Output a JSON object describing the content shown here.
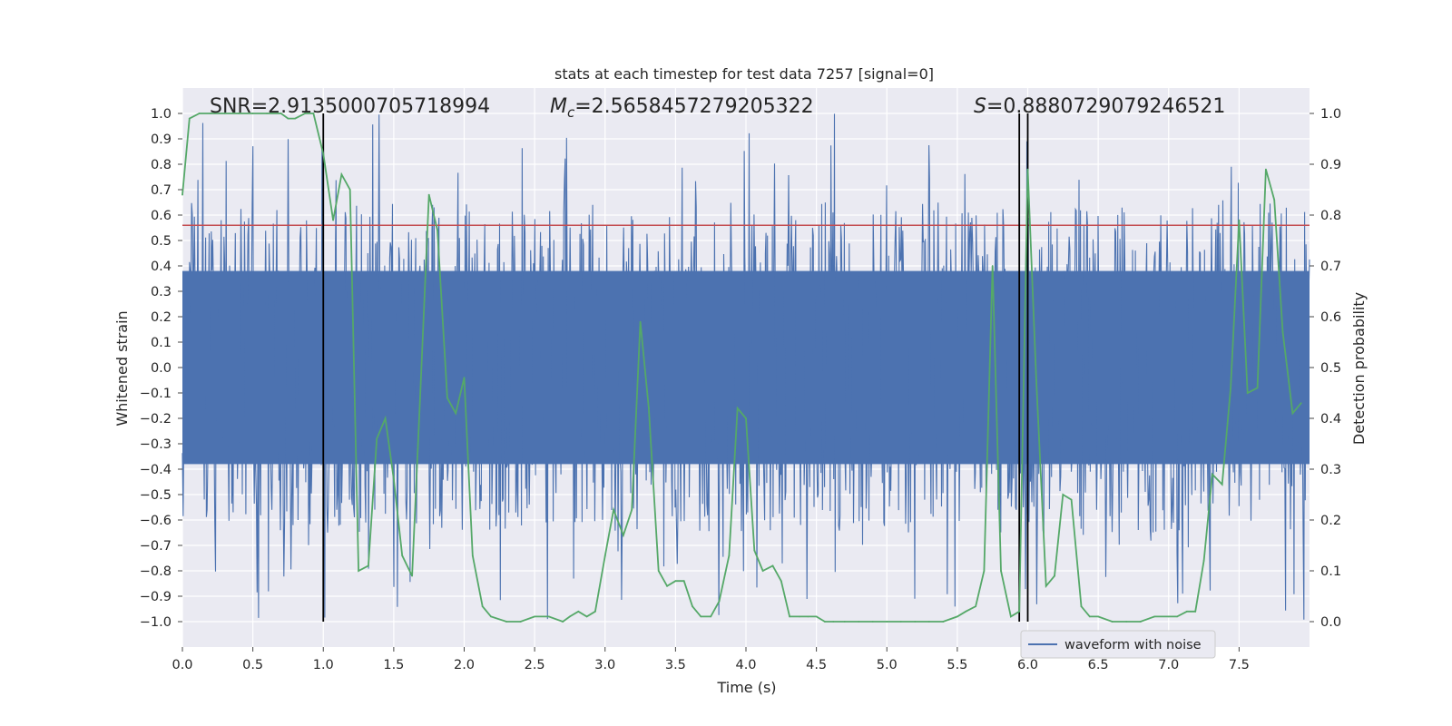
{
  "chart_data": {
    "type": "line",
    "title": "stats at each timestep for test data 7257 [signal=0]",
    "xlabel": "Time (s)",
    "ylabel_left": "Whitened strain",
    "ylabel_right": "Detection probability",
    "xlim": [
      0.0,
      8.0
    ],
    "ylim_left": [
      -1.1,
      1.1
    ],
    "ylim_right": [
      -0.05,
      1.05
    ],
    "x_ticks": [
      0.0,
      0.5,
      1.0,
      1.5,
      2.0,
      2.5,
      3.0,
      3.5,
      4.0,
      4.5,
      5.0,
      5.5,
      6.0,
      6.5,
      7.0,
      7.5
    ],
    "x_tick_labels": [
      "0.0",
      "0.5",
      "1.0",
      "1.5",
      "2.0",
      "2.5",
      "3.0",
      "3.5",
      "4.0",
      "4.5",
      "5.0",
      "5.5",
      "6.0",
      "6.5",
      "7.0",
      "7.5"
    ],
    "y_left_ticks": [
      1.0,
      0.9,
      0.8,
      0.7,
      0.6,
      0.5,
      0.4,
      0.3,
      0.2,
      0.1,
      0.0,
      -0.1,
      -0.2,
      -0.3,
      -0.4,
      -0.5,
      -0.6,
      -0.7,
      -0.8,
      -0.9,
      -1.0
    ],
    "y_left_tick_labels": [
      "1.0",
      "0.9",
      "0.8",
      "0.7",
      "0.6",
      "0.5",
      "0.4",
      "0.3",
      "0.2",
      "0.1",
      "0.0",
      "−0.1",
      "−0.2",
      "−0.3",
      "−0.4",
      "−0.5",
      "−0.6",
      "−0.7",
      "−0.8",
      "−0.9",
      "−1.0"
    ],
    "y_right_ticks": [
      1.0,
      0.9,
      0.8,
      0.7,
      0.6,
      0.5,
      0.4,
      0.3,
      0.2,
      0.1,
      0.0
    ],
    "y_right_tick_labels": [
      "1.0",
      "0.9",
      "0.8",
      "0.7",
      "0.6",
      "0.5",
      "0.4",
      "0.3",
      "0.2",
      "0.1",
      "0.0"
    ],
    "annotations": {
      "snr": "SNR=2.9135000705718994",
      "mc_symbol": "M",
      "mc_sub": "c",
      "mc_value": "=2.5658457279205322",
      "s_symbol": "S",
      "s_value": "=0.8880729079246521"
    },
    "threshold": 0.78,
    "vertical_markers": [
      1.0,
      5.94,
      6.0
    ],
    "legend": {
      "label": "waveform with noise",
      "location": "lower-right"
    },
    "colors": {
      "waveform": "#4c72b0",
      "probability": "#55a868",
      "threshold": "#c44e52",
      "markers": "#000000",
      "plot_bg": "#eaeaf2",
      "grid": "#ffffff"
    },
    "series": [
      {
        "name": "waveform with noise",
        "axis": "left",
        "envelope": {
          "core_amplitude": 0.38,
          "typical_peak": 0.55,
          "max_abs": 1.0,
          "samples": 1600,
          "seed": 7257
        }
      },
      {
        "name": "detection probability",
        "axis": "right",
        "x": [
          0.0,
          0.05,
          0.12,
          0.2,
          0.3,
          0.4,
          0.5,
          0.6,
          0.7,
          0.75,
          0.8,
          0.87,
          0.93,
          1.0,
          1.07,
          1.13,
          1.19,
          1.25,
          1.32,
          1.38,
          1.44,
          1.5,
          1.56,
          1.63,
          1.69,
          1.75,
          1.81,
          1.88,
          1.94,
          2.0,
          2.06,
          2.13,
          2.19,
          2.3,
          2.4,
          2.5,
          2.6,
          2.7,
          2.75,
          2.81,
          2.87,
          2.93,
          3.0,
          3.06,
          3.13,
          3.19,
          3.25,
          3.31,
          3.38,
          3.44,
          3.5,
          3.56,
          3.62,
          3.68,
          3.75,
          3.81,
          3.88,
          3.94,
          4.0,
          4.06,
          4.12,
          4.19,
          4.25,
          4.31,
          4.38,
          4.44,
          4.5,
          4.56,
          4.62,
          4.7,
          4.8,
          4.9,
          5.0,
          5.1,
          5.2,
          5.3,
          5.4,
          5.5,
          5.56,
          5.63,
          5.69,
          5.75,
          5.81,
          5.88,
          5.94,
          6.0,
          6.06,
          6.13,
          6.19,
          6.25,
          6.31,
          6.38,
          6.44,
          6.5,
          6.6,
          6.7,
          6.8,
          6.9,
          7.0,
          7.06,
          7.13,
          7.19,
          7.25,
          7.31,
          7.38,
          7.44,
          7.5,
          7.56,
          7.63,
          7.69,
          7.75,
          7.81,
          7.88,
          7.94
        ],
        "values": [
          0.84,
          0.99,
          1.0,
          1.0,
          1.0,
          1.0,
          1.0,
          1.0,
          1.0,
          0.99,
          0.99,
          1.0,
          1.0,
          0.92,
          0.79,
          0.88,
          0.85,
          0.1,
          0.11,
          0.36,
          0.4,
          0.28,
          0.13,
          0.09,
          0.46,
          0.84,
          0.77,
          0.44,
          0.41,
          0.48,
          0.13,
          0.03,
          0.01,
          0.0,
          0.0,
          0.01,
          0.01,
          0.0,
          0.01,
          0.02,
          0.01,
          0.02,
          0.13,
          0.22,
          0.17,
          0.22,
          0.59,
          0.42,
          0.1,
          0.07,
          0.08,
          0.08,
          0.03,
          0.01,
          0.01,
          0.04,
          0.13,
          0.42,
          0.4,
          0.14,
          0.1,
          0.11,
          0.08,
          0.01,
          0.01,
          0.01,
          0.01,
          0.0,
          0.0,
          0.0,
          0.0,
          0.0,
          0.0,
          0.0,
          0.0,
          0.0,
          0.0,
          0.01,
          0.02,
          0.03,
          0.1,
          0.7,
          0.1,
          0.01,
          0.02,
          0.89,
          0.48,
          0.07,
          0.09,
          0.25,
          0.24,
          0.03,
          0.01,
          0.01,
          0.0,
          0.0,
          0.0,
          0.01,
          0.01,
          0.01,
          0.02,
          0.02,
          0.12,
          0.29,
          0.27,
          0.46,
          0.79,
          0.45,
          0.46,
          0.89,
          0.83,
          0.57,
          0.41,
          0.43
        ]
      }
    ]
  }
}
